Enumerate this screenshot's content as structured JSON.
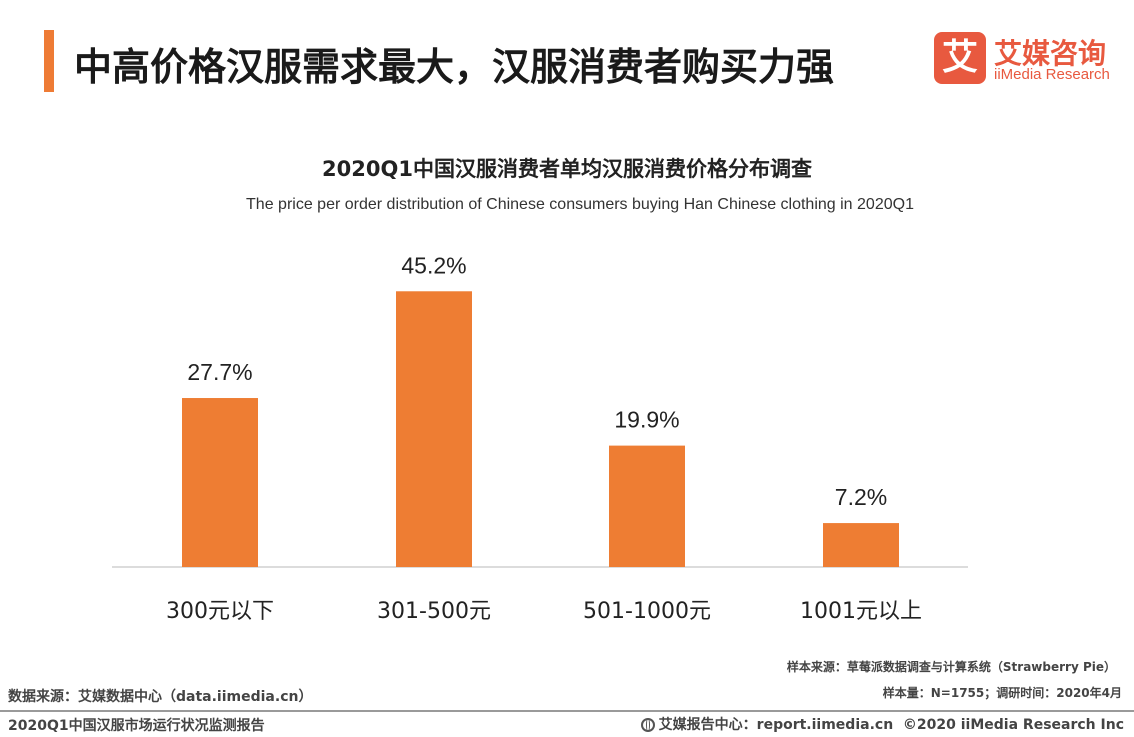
{
  "header": {
    "title": "中高价格汉服需求最大，汉服消费者购买力强",
    "logo_mark": "艾",
    "logo_cn": "艾媒咨询",
    "logo_en": "iiMedia Research"
  },
  "colors": {
    "accent": "#ee7b35",
    "logo": "#e8593f",
    "bar": "#ee7d33"
  },
  "chart_data": {
    "type": "bar",
    "title": "2020Q1中国汉服消费者单均汉服消费价格分布调查",
    "subtitle": "The price per order distribution of Chinese consumers buying Han Chinese clothing in 2020Q1",
    "categories": [
      "300元以下",
      "301-500元",
      "501-1000元",
      "1001元以上"
    ],
    "values": [
      27.7,
      45.2,
      19.9,
      7.2
    ],
    "value_labels": [
      "27.7%",
      "45.2%",
      "19.9%",
      "7.2%"
    ],
    "unit": "%",
    "xlabel": "",
    "ylabel": "",
    "ylim": [
      0,
      50
    ],
    "grid": false,
    "legend": "none"
  },
  "notes": {
    "sample_source": "样本来源：草莓派数据调查与计算系统（Strawberry Pie）",
    "data_source": "数据来源：艾媒数据中心（data.iimedia.cn）",
    "sample_size": "样本量：N=1755；调研时间：2020年4月"
  },
  "footer": {
    "report_name": "2020Q1中国汉服市场运行状况监测报告",
    "report_center": "艾媒报告中心：report.iimedia.cn",
    "copyright": "©2020  iiMedia Research  Inc"
  }
}
